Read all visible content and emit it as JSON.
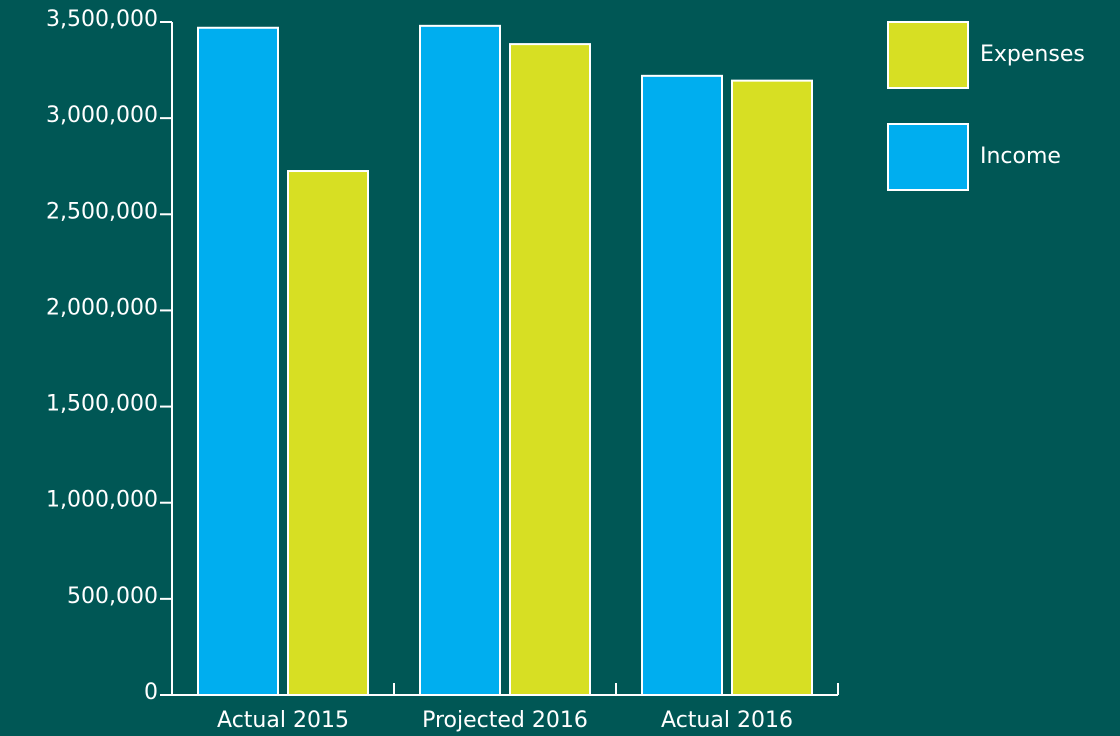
{
  "chart_data": {
    "type": "bar",
    "categories": [
      "Actual 2015",
      "Projected 2016",
      "Actual 2016"
    ],
    "series": [
      {
        "name": "Income",
        "color": "#00aeef",
        "values": [
          3470000,
          3480000,
          3220000
        ]
      },
      {
        "name": "Expenses",
        "color": "#d7df23",
        "values": [
          2725000,
          3385000,
          3195000
        ]
      }
    ],
    "ylim": [
      0,
      3500000
    ],
    "yticks": [
      0,
      {
        "value": 500000,
        "label": "500,000"
      },
      {
        "value": 1000000,
        "label": "1,000,000"
      },
      {
        "value": 1500000,
        "label": "1,500,000"
      },
      {
        "value": 2000000,
        "label": "2,000,000"
      },
      {
        "value": 2500000,
        "label": "2,500,000"
      },
      {
        "value": 3000000,
        "label": "3,000,000"
      },
      {
        "value": 3500000,
        "label": "3,500,000"
      }
    ],
    "legend": "top-right"
  }
}
